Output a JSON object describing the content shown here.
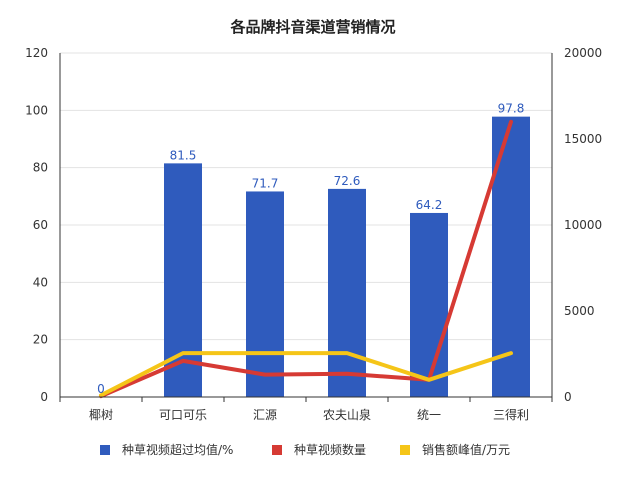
{
  "chart_data": {
    "type": "bar",
    "title": "各品牌抖音渠道营销情况",
    "categories": [
      "椰树",
      "可口可乐",
      "汇源",
      "农夫山泉",
      "统一",
      "三得利"
    ],
    "y_left": {
      "range": [
        0,
        120
      ],
      "ticks": [
        "0",
        "20",
        "40",
        "60",
        "80",
        "100",
        "120"
      ]
    },
    "y_right": {
      "range": [
        0,
        20000
      ],
      "ticks": [
        "0",
        "5000",
        "10000",
        "15000",
        "20000"
      ]
    },
    "grid": true,
    "legend_position": "bottom",
    "series": [
      {
        "name": "种草视频超过均值/%",
        "type": "bar",
        "axis": "left",
        "color": "#2f5bbd",
        "values": [
          0,
          81.5,
          71.7,
          72.6,
          64.2,
          97.8
        ],
        "labels": [
          "0",
          "81.5",
          "71.7",
          "72.6",
          "64.2",
          "97.8"
        ]
      },
      {
        "name": "种草视频数量",
        "type": "line",
        "axis": "right",
        "color": "#d63a34",
        "values": [
          50,
          2100,
          1300,
          1350,
          1000,
          16000
        ]
      },
      {
        "name": "销售额峰值/万元",
        "type": "line",
        "axis": "right",
        "color": "#f5c518",
        "values": [
          100,
          2550,
          2550,
          2550,
          1000,
          2550
        ]
      }
    ]
  }
}
